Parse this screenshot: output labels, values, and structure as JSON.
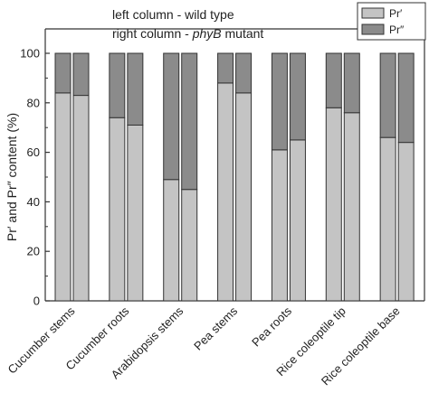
{
  "chart_data": {
    "type": "bar",
    "stacked": true,
    "categories": [
      "Cucumber stems",
      "Cucumber roots",
      "Arabidopsis stems",
      "Pea  stems",
      "Pea roots",
      "Rice  coleoptile tip",
      "Rice coleoptile base"
    ],
    "columns": [
      "left",
      "right"
    ],
    "series": [
      {
        "name": "Pr′",
        "color": "#c4c4c4",
        "values": [
          [
            84,
            83
          ],
          [
            74,
            71
          ],
          [
            49,
            45
          ],
          [
            88,
            84
          ],
          [
            61,
            65
          ],
          [
            78,
            76
          ],
          [
            66,
            64
          ]
        ]
      },
      {
        "name": "Pr″",
        "color": "#8b8b8b",
        "values": [
          [
            16,
            17
          ],
          [
            26,
            29
          ],
          [
            51,
            55
          ],
          [
            12,
            16
          ],
          [
            39,
            35
          ],
          [
            22,
            24
          ],
          [
            34,
            36
          ]
        ]
      }
    ],
    "annotation": {
      "line1": "left column - wild type",
      "line2_prefix": "right column - ",
      "line2_italic": "phyB",
      "line2_suffix": " mutant"
    },
    "ylabel": "Pr′ and Pr″ content  (%)",
    "xlabel": "",
    "ylim": [
      0,
      100
    ],
    "yticks": [
      0,
      20,
      40,
      60,
      80,
      100
    ],
    "grid": false,
    "legend_position": "top-right"
  }
}
